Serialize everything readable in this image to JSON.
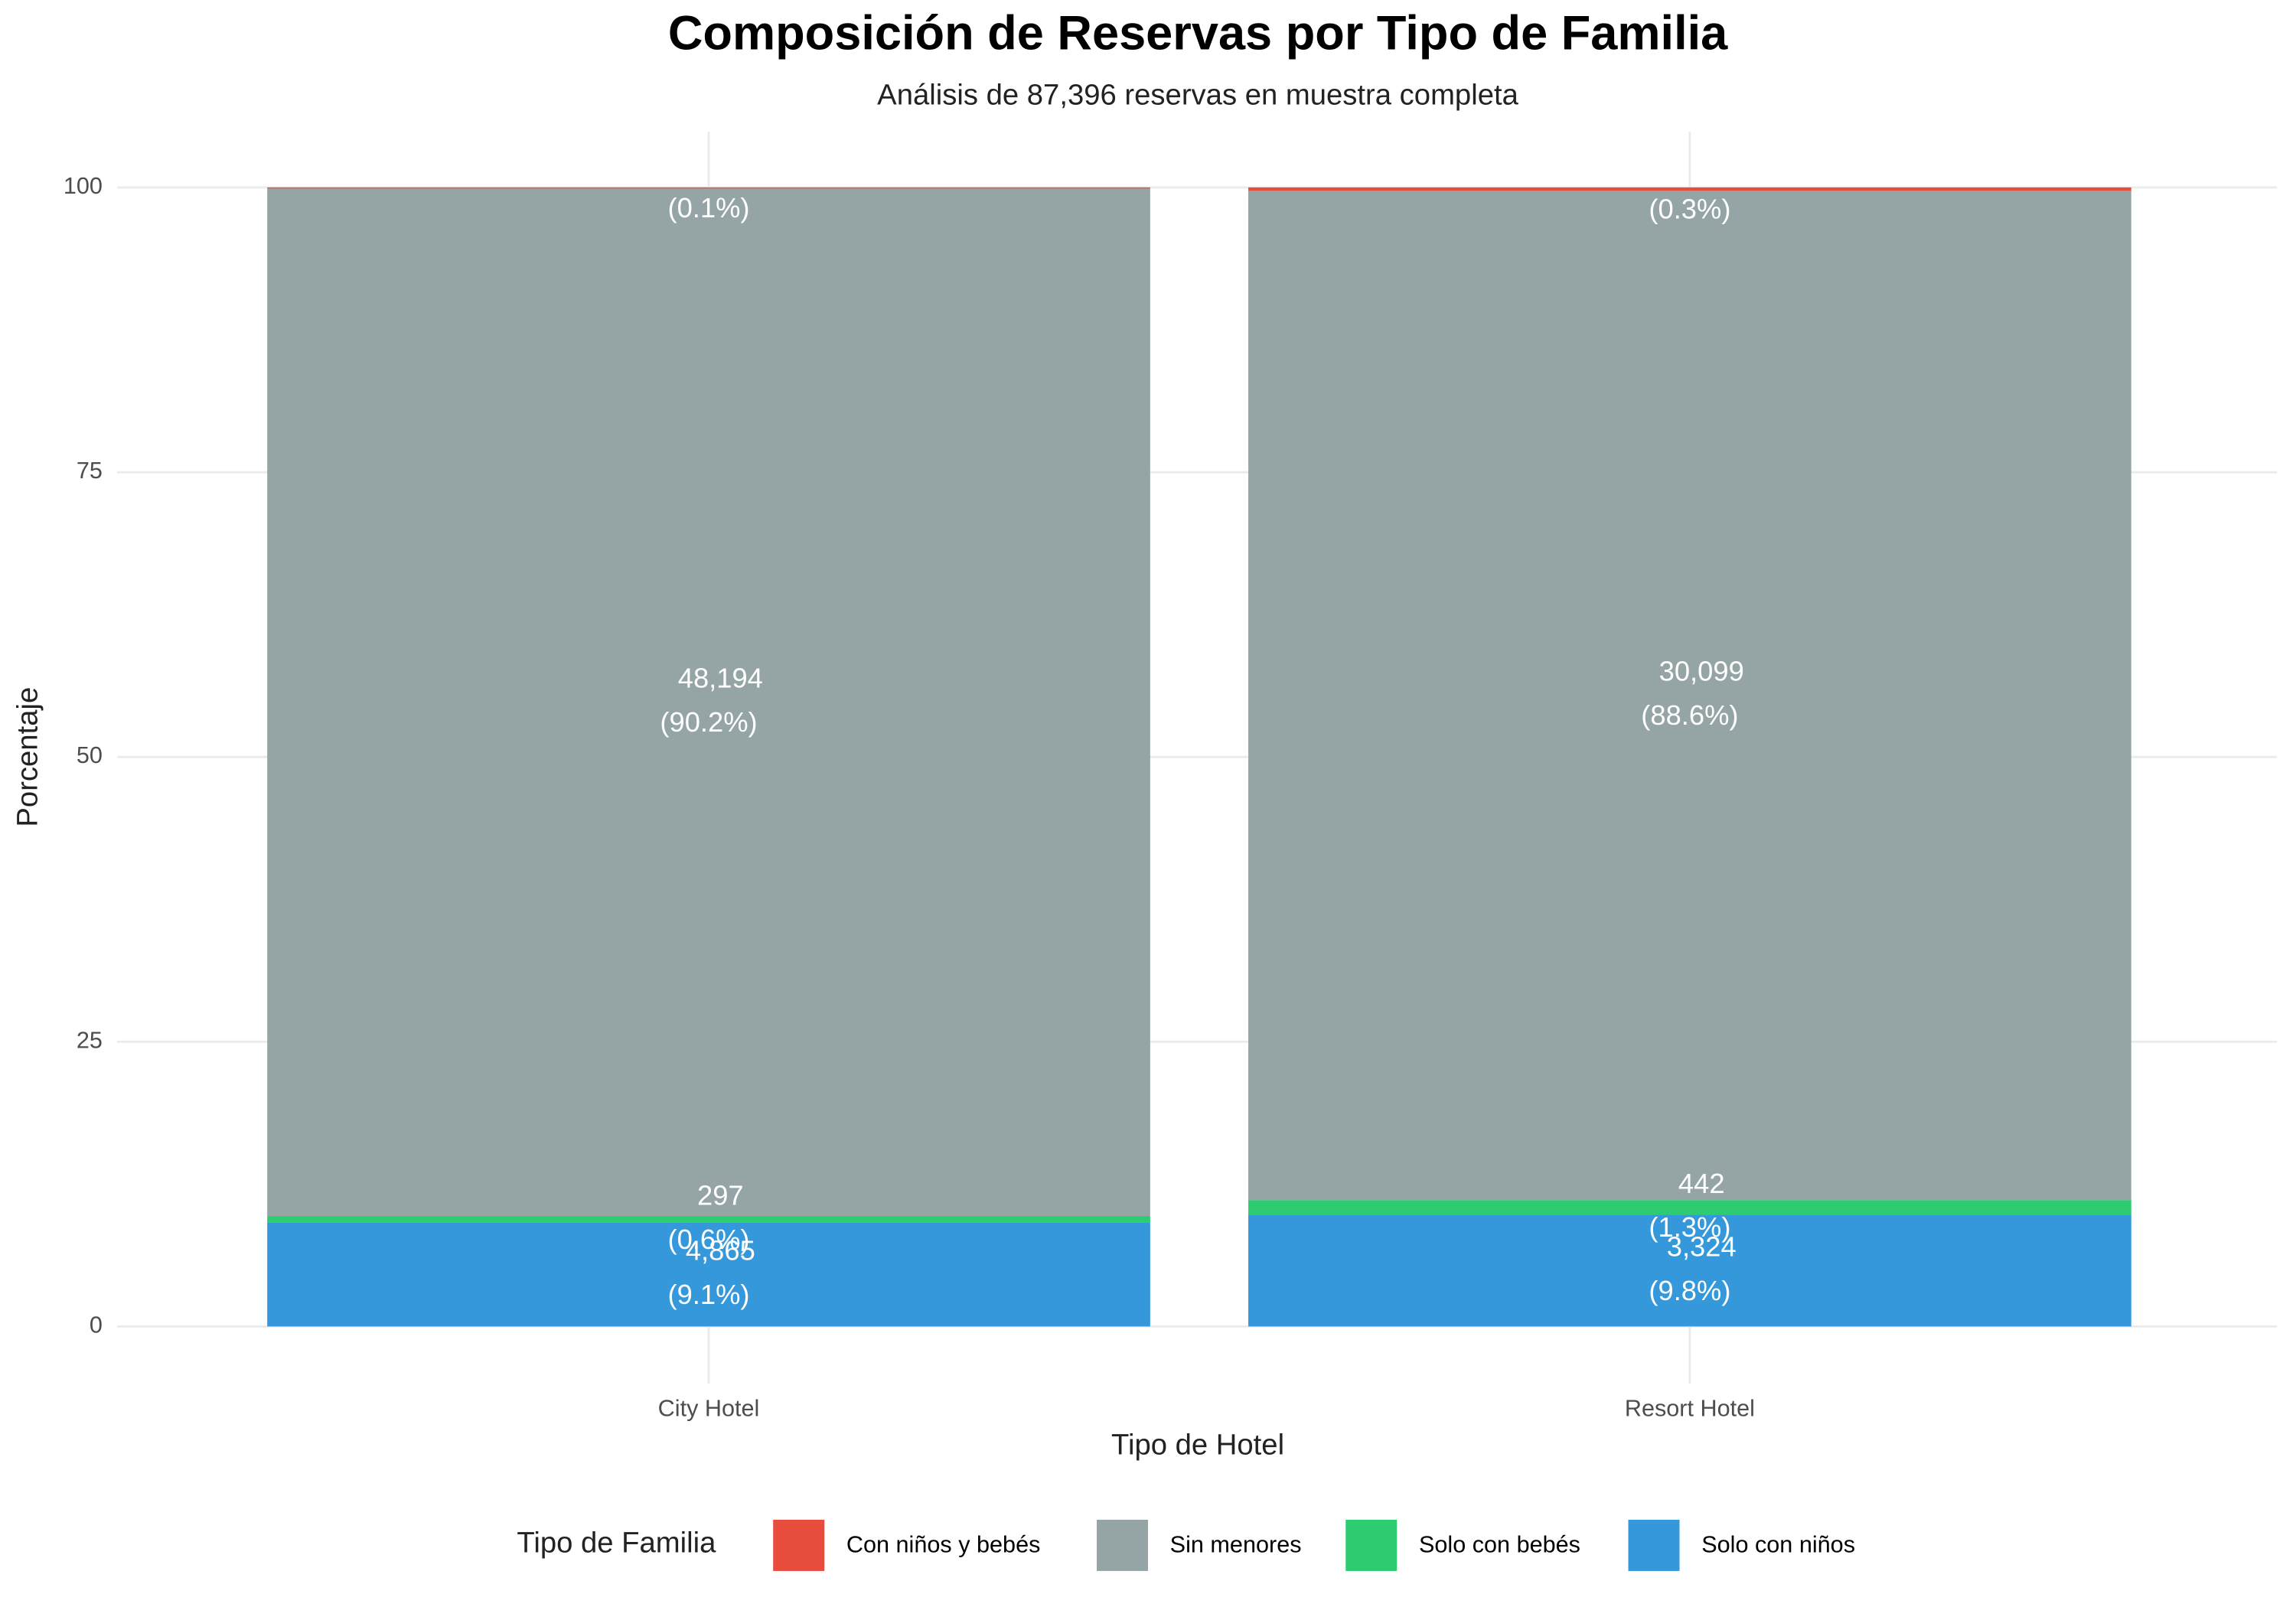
{
  "chart_data": {
    "type": "stacked_bar",
    "title": "Composición de Reservas por Tipo de Familia",
    "subtitle": "Análisis de 87,396 reservas en muestra completa",
    "x_label": "Tipo de Hotel",
    "y_label": "Porcentaje",
    "categories": [
      "City Hotel",
      "Resort Hotel"
    ],
    "ylim": [
      0,
      100
    ],
    "yticks": [
      0,
      25,
      50,
      75,
      100
    ],
    "grid": true,
    "legend_title": "Tipo de Familia",
    "legend_position": "bottom",
    "series": [
      {
        "name": "Con niños y bebés",
        "color": "#E74C3C",
        "values": [
          0.1,
          0.3
        ],
        "value_labels": [
          "(0.1%)",
          "(0.3%)"
        ],
        "count_labels": [
          null,
          null
        ]
      },
      {
        "name": "Sin menores",
        "color": "#95A5A6",
        "values": [
          90.2,
          88.6
        ],
        "value_labels": [
          "(90.2%)",
          "(88.6%)"
        ],
        "count_labels": [
          "48,194",
          "30,099"
        ]
      },
      {
        "name": "Solo con bebés",
        "color": "#2ECC71",
        "values": [
          0.6,
          1.3
        ],
        "value_labels": [
          "(0.6%)",
          "(1.3%)"
        ],
        "count_labels": [
          "297",
          "442"
        ]
      },
      {
        "name": "Solo con niños",
        "color": "#3498DB",
        "values": [
          9.1,
          9.8
        ],
        "value_labels": [
          "(9.1%)",
          "(9.8%)"
        ],
        "count_labels": [
          "4,865",
          "3,324"
        ]
      }
    ]
  }
}
